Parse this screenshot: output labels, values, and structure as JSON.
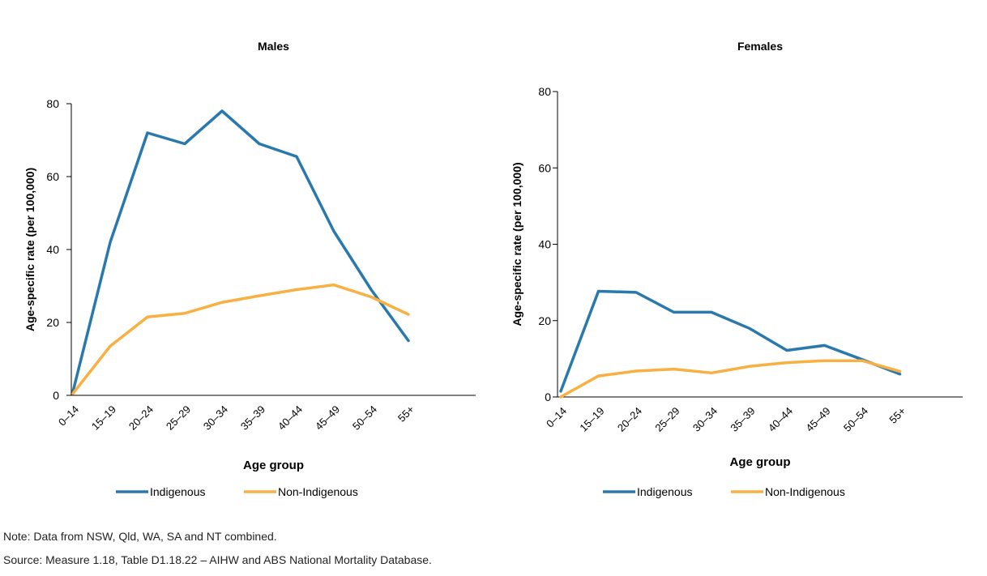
{
  "colors": {
    "Indigenous": "#2979ad",
    "Non-Indigenous": "#f8b043",
    "axis": "#000000"
  },
  "chart_data": [
    {
      "type": "line",
      "title": "Males",
      "xlabel": "Age group",
      "ylabel": "Age-specific rate (per 100,000)",
      "categories": [
        "0–14",
        "15–19",
        "20–24",
        "25–29",
        "30–34",
        "35–39",
        "40–44",
        "45–49",
        "50–54",
        "55+"
      ],
      "ylim": [
        0,
        80
      ],
      "yticks": [
        0,
        20,
        40,
        60,
        80
      ],
      "grid": false,
      "legend": "bottom",
      "series": [
        {
          "name": "Indigenous",
          "values": [
            1,
            42,
            72,
            69,
            78,
            69,
            65.5,
            45,
            29,
            15
          ]
        },
        {
          "name": "Non-Indigenous",
          "values": [
            0.5,
            13.5,
            21.5,
            22.5,
            25.5,
            27.3,
            29,
            30.3,
            27,
            22.2
          ]
        }
      ]
    },
    {
      "type": "line",
      "title": "Females",
      "xlabel": "Age group",
      "ylabel": "Age-specific rate (per 100,000)",
      "categories": [
        "0–14",
        "15–19",
        "20–24",
        "25–29",
        "30–34",
        "35–39",
        "40–44",
        "45–49",
        "50–54",
        "55+"
      ],
      "ylim": [
        0,
        80
      ],
      "yticks": [
        0,
        20,
        40,
        60,
        80
      ],
      "grid": false,
      "legend": "bottom",
      "series": [
        {
          "name": "Indigenous",
          "values": [
            1.5,
            27.7,
            27.4,
            22.2,
            22.2,
            18,
            12.2,
            13.5,
            9.8,
            6
          ]
        },
        {
          "name": "Non-Indigenous",
          "values": [
            0,
            5.5,
            6.8,
            7.3,
            6.3,
            8,
            9,
            9.5,
            9.5,
            6.7
          ]
        }
      ]
    }
  ],
  "footer": {
    "note": "Note: Data from NSW, Qld, WA, SA and NT combined.",
    "source": "Source: Measure 1.18, Table D1.18.22 – AIHW and ABS National Mortality Database."
  }
}
